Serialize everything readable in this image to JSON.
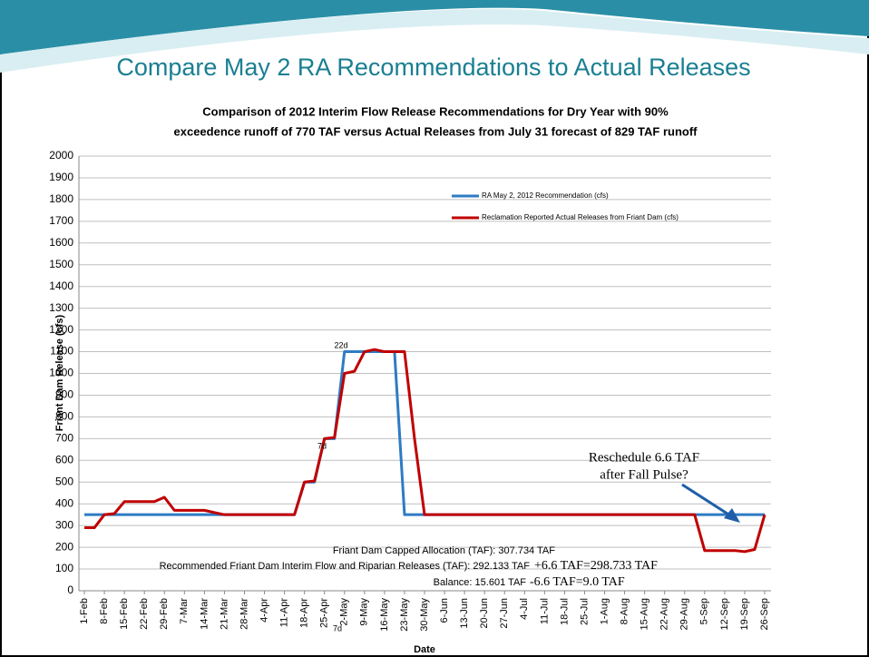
{
  "slide_title": "Compare May 2 RA Recommendations to Actual Releases",
  "chart_data": {
    "type": "line",
    "title": [
      "Comparison of 2012 Interim Flow Release Recommendations for Dry Year with 90%",
      "exceedence runoff of 770 TAF versus Actual Releases from July 31 forecast of 829 TAF runoff"
    ],
    "xlabel": "Date",
    "ylabel": "Friant Dam Release (cfs)",
    "categories": [
      "1-Feb",
      null,
      "8-Feb",
      null,
      "15-Feb",
      null,
      "22-Feb",
      null,
      "29-Feb",
      null,
      "7-Mar",
      null,
      "14-Mar",
      null,
      "21-Mar",
      null,
      "28-Mar",
      null,
      "4-Apr",
      null,
      "11-Apr",
      null,
      "18-Apr",
      null,
      "25-Apr",
      null,
      "2-May",
      null,
      "9-May",
      null,
      "16-May",
      null,
      "23-May",
      null,
      "30-May",
      null,
      "6-Jun",
      null,
      "13-Jun",
      null,
      "20-Jun",
      null,
      "27-Jun",
      null,
      "4-Jul",
      null,
      "11-Jul",
      null,
      "18-Jul",
      null,
      "25-Jul",
      null,
      "1-Aug",
      null,
      "8-Aug",
      null,
      "15-Aug",
      null,
      "22-Aug",
      null,
      "29-Aug",
      null,
      "5-Sep",
      null,
      "12-Sep",
      null,
      "19-Sep",
      null,
      "26-Sep"
    ],
    "series": [
      {
        "name": "RA May 2, 2012 Recommendation (cfs)",
        "color": "#2e7bc4",
        "values": [
          350,
          350,
          350,
          350,
          350,
          350,
          350,
          350,
          350,
          350,
          350,
          350,
          350,
          350,
          350,
          350,
          350,
          350,
          350,
          350,
          350,
          350,
          500,
          500,
          700,
          700,
          1100,
          1100,
          1100,
          1100,
          1100,
          1100,
          350,
          350,
          350,
          350,
          350,
          350,
          350,
          350,
          350,
          350,
          350,
          350,
          350,
          350,
          350,
          350,
          350,
          350,
          350,
          350,
          350,
          350,
          350,
          350,
          350,
          350,
          350,
          350,
          350,
          350,
          350,
          350,
          350,
          350,
          350,
          350,
          350
        ]
      },
      {
        "name": "Reclamation Reported Actual Releases from Friant Dam (cfs)",
        "color": "#c00000",
        "values": [
          290,
          290,
          350,
          355,
          410,
          410,
          410,
          410,
          430,
          370,
          370,
          370,
          370,
          360,
          350,
          350,
          350,
          350,
          350,
          350,
          350,
          350,
          500,
          505,
          700,
          705,
          1000,
          1010,
          1100,
          1110,
          1100,
          1100,
          1100,
          700,
          350,
          350,
          350,
          350,
          350,
          350,
          350,
          350,
          350,
          350,
          350,
          350,
          350,
          350,
          350,
          350,
          350,
          350,
          350,
          350,
          350,
          350,
          350,
          350,
          350,
          350,
          350,
          350,
          185,
          185,
          185,
          185,
          180,
          190,
          350
        ]
      }
    ],
    "ylim": [
      0,
      2000
    ],
    "yticks": [
      0,
      100,
      200,
      300,
      400,
      500,
      600,
      700,
      800,
      900,
      1000,
      1100,
      1200,
      1300,
      1400,
      1500,
      1600,
      1700,
      1800,
      1900,
      2000
    ],
    "grid": true,
    "annotations": [
      "7d",
      "7d",
      "22d",
      "Reschedule 6.6 TAF",
      "after Fall Pulse?"
    ],
    "notes": [
      "Friant Dam Capped Allocation (TAF):  307.734 TAF",
      "Recommended Friant Dam Interim Flow and Riparian Releases (TAF):  292.133 TAF",
      "+6.6 TAF=298.733 TAF",
      "Balance: 15.601 TAF",
      "-6.6 TAF=9.0 TAF"
    ]
  }
}
